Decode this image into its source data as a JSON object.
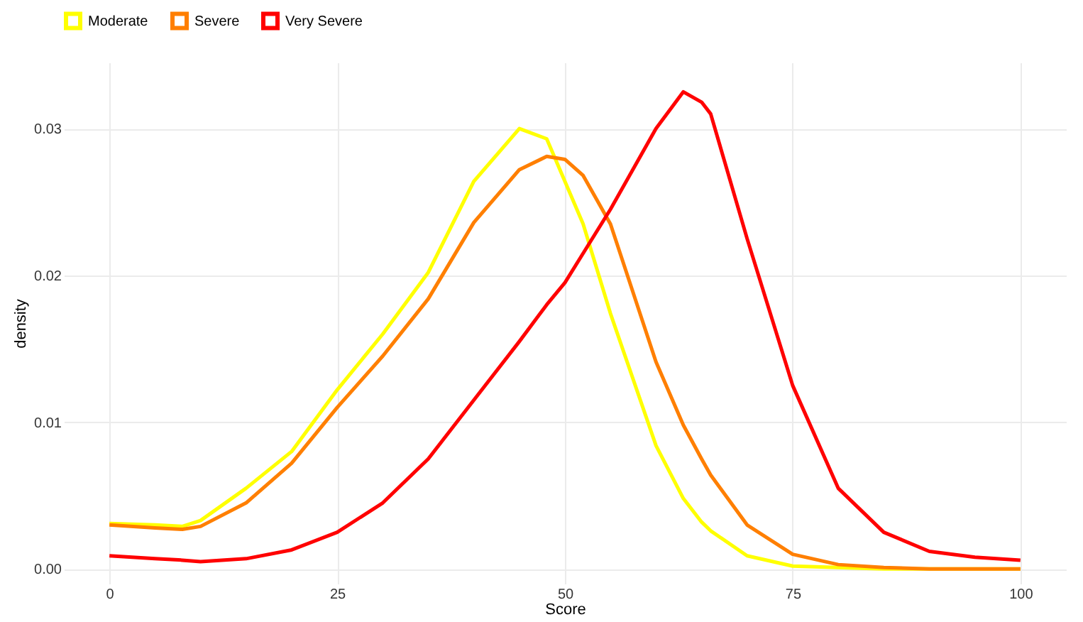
{
  "chart_data": {
    "type": "line",
    "xlabel": "Score",
    "ylabel": "density",
    "x": [
      0,
      5,
      8,
      10,
      15,
      20,
      25,
      30,
      35,
      40,
      45,
      48,
      50,
      52,
      55,
      60,
      63,
      65,
      66,
      70,
      75,
      80,
      85,
      90,
      95,
      100
    ],
    "series": [
      {
        "name": "Moderate",
        "color": "#ffff00",
        "values": [
          0.0031,
          0.003,
          0.0029,
          0.0033,
          0.0055,
          0.008,
          0.0122,
          0.016,
          0.0202,
          0.0264,
          0.03,
          0.0293,
          0.0264,
          0.0235,
          0.0174,
          0.0084,
          0.0048,
          0.0032,
          0.0026,
          0.0009,
          0.0002,
          0.0001,
          0,
          0,
          0,
          0
        ]
      },
      {
        "name": "Severe",
        "color": "#ff7f00",
        "values": [
          0.003,
          0.0028,
          0.0027,
          0.0029,
          0.0045,
          0.0072,
          0.011,
          0.0145,
          0.0184,
          0.0236,
          0.0272,
          0.0281,
          0.0279,
          0.0268,
          0.0235,
          0.0141,
          0.0098,
          0.0075,
          0.0064,
          0.003,
          0.001,
          0.0003,
          0.0001,
          0,
          0,
          0
        ]
      },
      {
        "name": "Very Severe",
        "color": "#ff0000",
        "values": [
          0.0009,
          0.0007,
          0.0006,
          0.0005,
          0.0007,
          0.0013,
          0.0025,
          0.0045,
          0.0075,
          0.0115,
          0.0155,
          0.018,
          0.0195,
          0.0215,
          0.0245,
          0.03,
          0.0325,
          0.0318,
          0.031,
          0.0225,
          0.0125,
          0.0055,
          0.0025,
          0.0012,
          0.0008,
          0.0006
        ]
      }
    ],
    "xlim": [
      -5,
      105
    ],
    "ylim": [
      -0.001,
      0.0345
    ],
    "xticks": [
      0,
      25,
      50,
      75,
      100
    ],
    "yticks": [
      {
        "value": 0,
        "label": "0.00"
      },
      {
        "value": 0.01,
        "label": "0.01"
      },
      {
        "value": 0.02,
        "label": "0.02"
      },
      {
        "value": 0.03,
        "label": "0.03"
      }
    ],
    "grid": true,
    "legend": "top",
    "marker": "none",
    "line_style": "solid"
  }
}
